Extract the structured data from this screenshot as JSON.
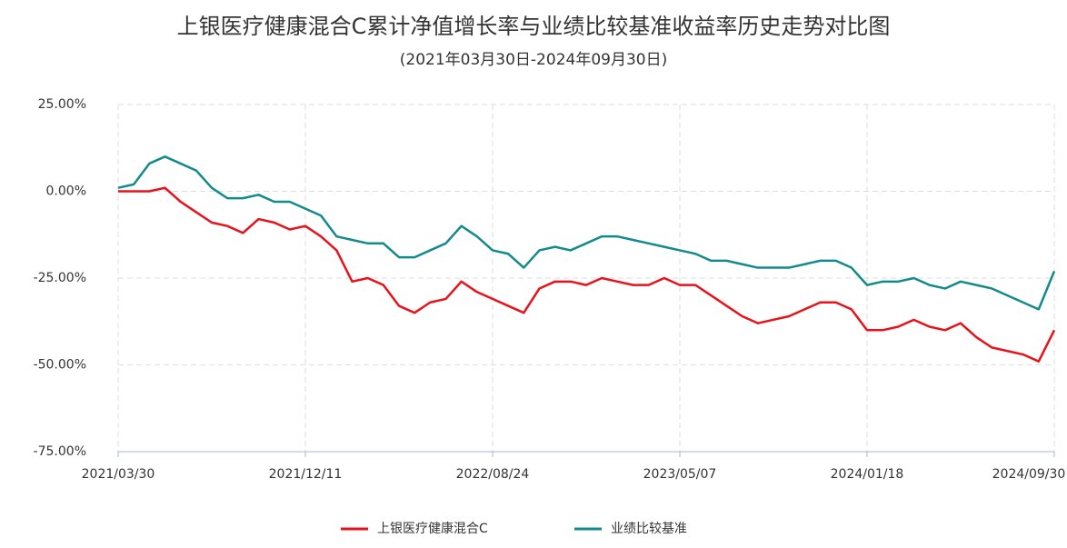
{
  "chart_data": {
    "type": "line",
    "title": "上银医疗健康混合C累计净值增长率与业绩比较基准收益率历史走势对比图",
    "subtitle": "(2021年03月30日-2024年09月30日)",
    "categories": [
      "2021/03/30",
      null,
      null,
      null,
      null,
      null,
      null,
      null,
      null,
      null,
      null,
      null,
      "2021/12/11",
      null,
      null,
      null,
      null,
      null,
      null,
      null,
      null,
      null,
      null,
      null,
      "2022/08/24",
      null,
      null,
      null,
      null,
      null,
      null,
      null,
      null,
      null,
      null,
      null,
      "2023/05/07",
      null,
      null,
      null,
      null,
      null,
      null,
      null,
      null,
      null,
      null,
      null,
      "2024/01/18",
      null,
      null,
      null,
      null,
      null,
      null,
      null,
      null,
      null,
      null,
      null,
      "2024/09/30"
    ],
    "series": [
      {
        "name": "上银医疗健康混合C",
        "color": "#e8121a",
        "values": [
          0,
          0,
          0,
          1,
          -3,
          -6,
          -9,
          -10,
          -12,
          -8,
          -9,
          -11,
          -10,
          -13,
          -17,
          -26,
          -25,
          -27,
          -33,
          -35,
          -32,
          -31,
          -26,
          -29,
          -31,
          -33,
          -35,
          -28,
          -26,
          -26,
          -27,
          -25,
          -26,
          -27,
          -27,
          -25,
          -27,
          -27,
          -30,
          -33,
          -36,
          -38,
          -37,
          -36,
          -34,
          -32,
          -32,
          -34,
          -40,
          -40,
          -39,
          -37,
          -39,
          -40,
          -38,
          -42,
          -45,
          -46,
          -47,
          -49,
          -40
        ]
      },
      {
        "name": "业绩比较基准",
        "color": "#138a8c",
        "values": [
          1,
          2,
          8,
          10,
          8,
          6,
          1,
          -2,
          -2,
          -1,
          -3,
          -3,
          -5,
          -7,
          -13,
          -14,
          -15,
          -15,
          -19,
          -19,
          -17,
          -15,
          -10,
          -13,
          -17,
          -18,
          -22,
          -17,
          -16,
          -17,
          -15,
          -13,
          -13,
          -14,
          -15,
          -16,
          -17,
          -18,
          -20,
          -20,
          -21,
          -22,
          -22,
          -22,
          -21,
          -20,
          -20,
          -22,
          -27,
          -26,
          -26,
          -25,
          -27,
          -28,
          -26,
          -27,
          -28,
          -30,
          -32,
          -34,
          -23
        ]
      }
    ],
    "ylim": [
      -75,
      25
    ],
    "yticks": [
      {
        "value": -75,
        "label": "-75.00%"
      },
      {
        "value": -50,
        "label": "-50.00%"
      },
      {
        "value": -25,
        "label": "-25.00%"
      },
      {
        "value": 0,
        "label": "0.00%"
      },
      {
        "value": 25,
        "label": "25.00%"
      }
    ],
    "grid": true
  }
}
